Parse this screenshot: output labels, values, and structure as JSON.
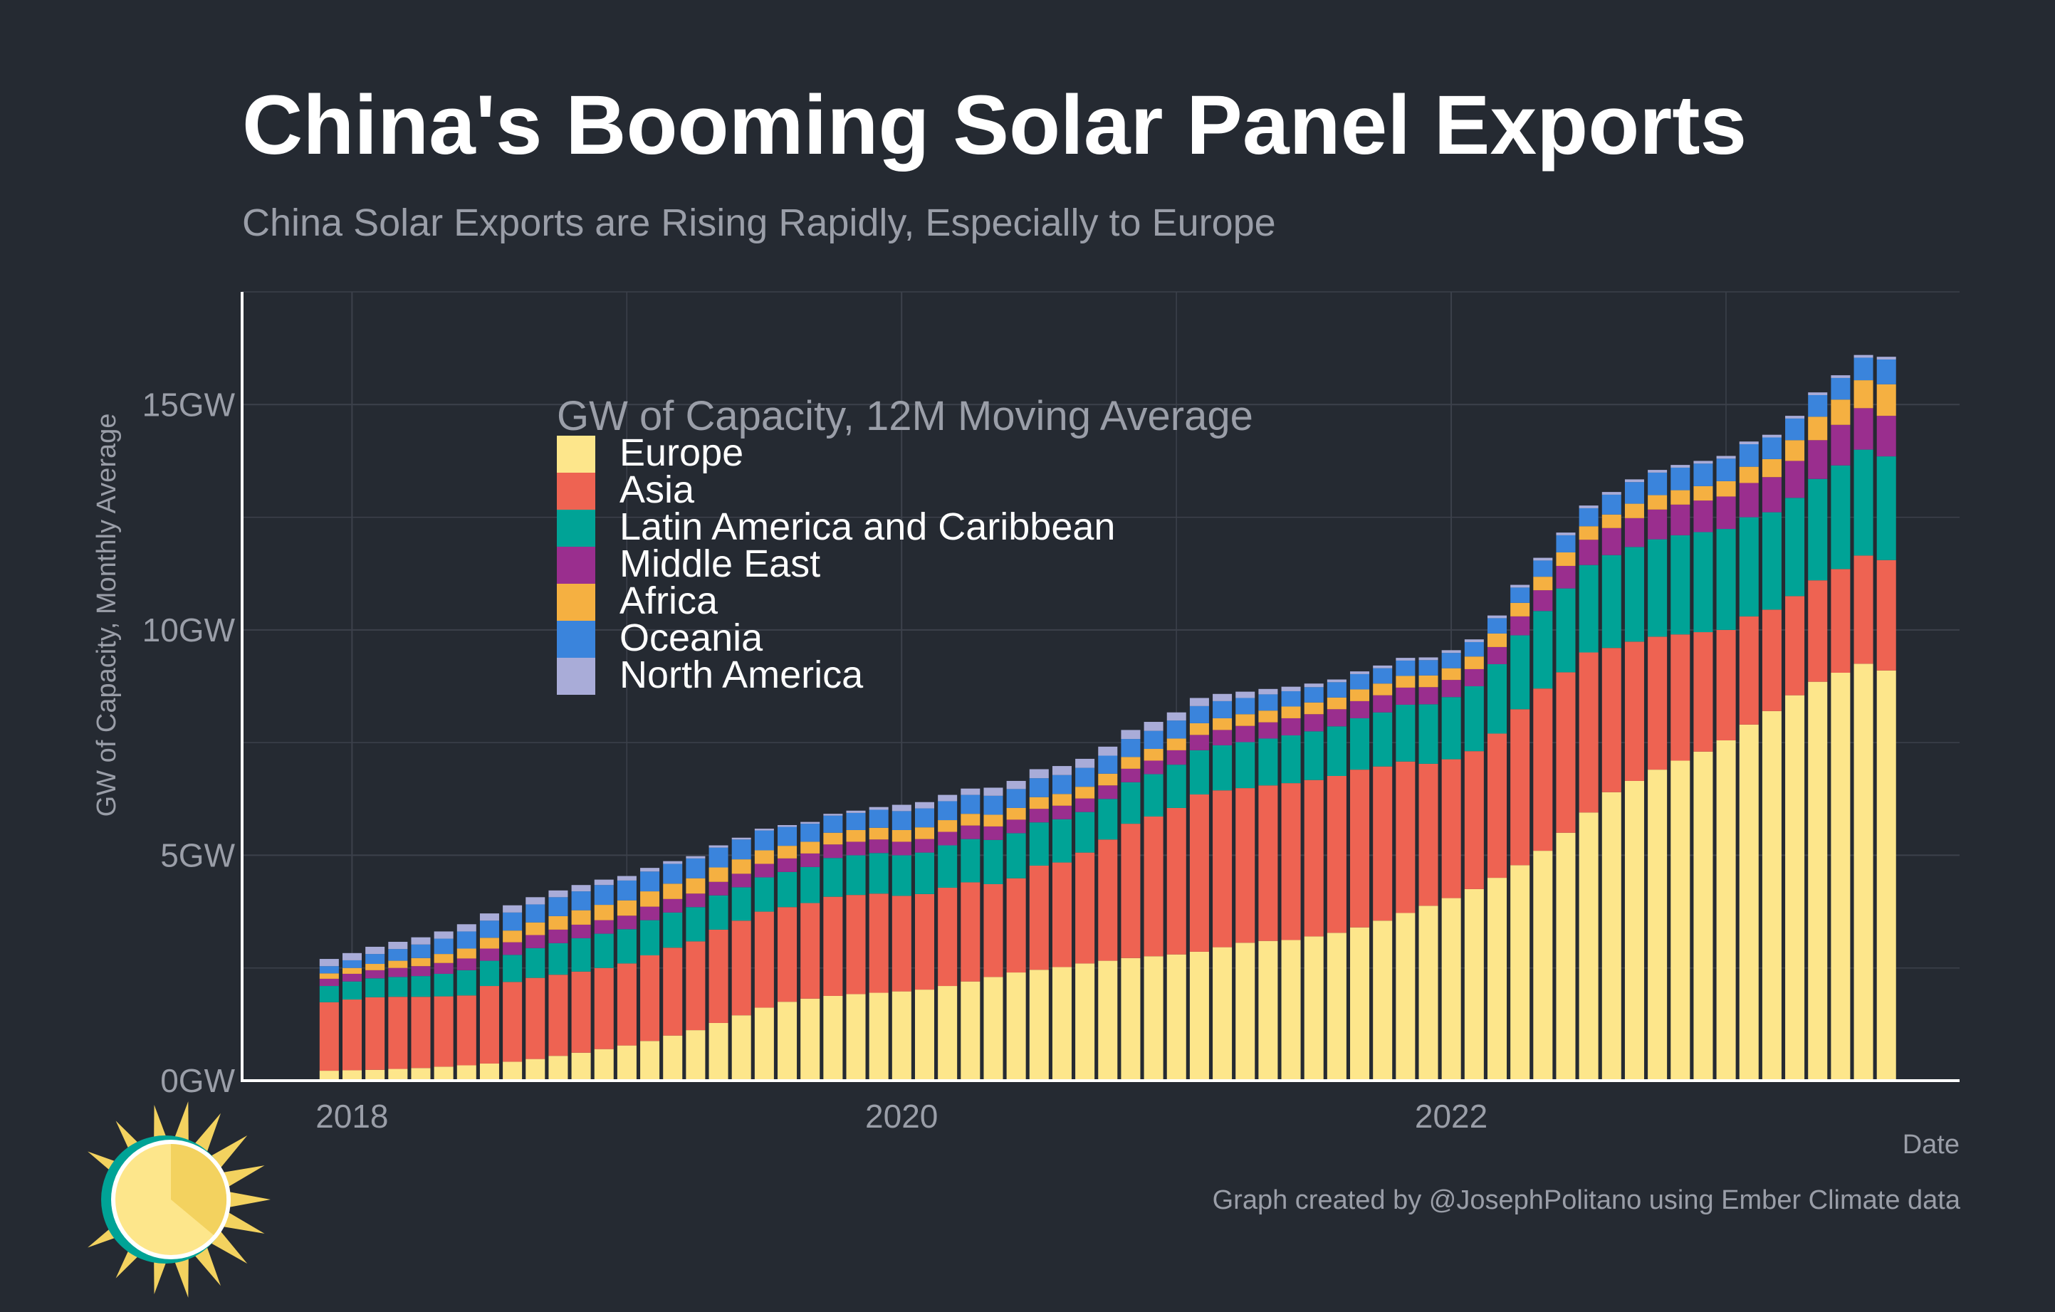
{
  "title": "China's Booming Solar Panel Exports",
  "subtitle": "China Solar Exports are Rising Rapidly, Especially to Europe",
  "caption": "Graph created by @JosephPolitano using Ember Climate data",
  "logo_icon": "sun-logo-icon",
  "colors": {
    "background": "#252a32",
    "grid": "#3c414b",
    "axis": "#ffffff",
    "muted_text": "#9a9ea8",
    "Europe": "#fde68b",
    "Asia": "#ee6352",
    "Latin America and Caribbean": "#00a396",
    "Middle East": "#9a2e8e",
    "Africa": "#f5b041",
    "Oceania": "#3a84dc",
    "North America": "#a9acd8"
  },
  "chart_data": {
    "type": "bar",
    "stacked": true,
    "title": "China's Booming Solar Panel Exports",
    "subtitle": "China Solar Exports are Rising Rapidly, Especially to Europe",
    "xlabel": "Date",
    "ylabel": "GW of Capacity, Monthly Average",
    "legend_title": "GW of Capacity, 12M Moving Average",
    "legend_position": "top-left",
    "y_ticks": [
      0,
      5,
      10,
      15
    ],
    "y_tick_labels": [
      "0GW",
      "5GW",
      "10GW",
      "15GW"
    ],
    "ylim": [
      0,
      17.5
    ],
    "x_ticks": [
      2018,
      2020,
      2022
    ],
    "x_tick_labels": [
      "2018",
      "2020",
      "2022"
    ],
    "xlim": [
      2017.6,
      2023.85
    ],
    "grid": true,
    "x_start": 2017.917,
    "x_step_months": 1,
    "series_order": [
      "Europe",
      "Asia",
      "Latin America and Caribbean",
      "Middle East",
      "Africa",
      "Oceania",
      "North America"
    ],
    "series": [
      {
        "name": "Europe",
        "values": [
          0.22,
          0.23,
          0.24,
          0.26,
          0.28,
          0.31,
          0.34,
          0.38,
          0.42,
          0.48,
          0.55,
          0.62,
          0.7,
          0.78,
          0.88,
          1.0,
          1.12,
          1.28,
          1.45,
          1.62,
          1.75,
          1.82,
          1.88,
          1.92,
          1.95,
          1.98,
          2.02,
          2.1,
          2.2,
          2.3,
          2.4,
          2.46,
          2.52,
          2.6,
          2.66,
          2.72,
          2.76,
          2.8,
          2.86,
          2.96,
          3.06,
          3.1,
          3.12,
          3.2,
          3.28,
          3.4,
          3.55,
          3.72,
          3.88,
          4.05,
          4.25,
          4.5,
          4.78,
          5.1,
          5.5,
          5.95,
          6.4,
          6.65,
          6.9,
          7.1,
          7.3,
          7.55,
          7.9,
          8.2,
          8.55,
          8.85,
          9.05,
          9.25,
          9.1
        ]
      },
      {
        "name": "Asia",
        "values": [
          1.52,
          1.57,
          1.61,
          1.6,
          1.58,
          1.56,
          1.55,
          1.72,
          1.77,
          1.8,
          1.8,
          1.8,
          1.8,
          1.82,
          1.9,
          1.95,
          1.97,
          2.07,
          2.1,
          2.13,
          2.1,
          2.12,
          2.2,
          2.2,
          2.2,
          2.12,
          2.12,
          2.18,
          2.2,
          2.06,
          2.09,
          2.31,
          2.32,
          2.46,
          2.69,
          2.98,
          3.1,
          3.25,
          3.49,
          3.48,
          3.43,
          3.45,
          3.48,
          3.47,
          3.48,
          3.5,
          3.42,
          3.36,
          3.15,
          3.08,
          3.06,
          3.2,
          3.46,
          3.6,
          3.56,
          3.55,
          3.2,
          3.09,
          2.95,
          2.8,
          2.65,
          2.45,
          2.4,
          2.25,
          2.2,
          2.25,
          2.3,
          2.4,
          2.45
        ]
      },
      {
        "name": "Latin America and Caribbean",
        "values": [
          0.36,
          0.4,
          0.42,
          0.44,
          0.46,
          0.5,
          0.56,
          0.56,
          0.6,
          0.66,
          0.7,
          0.74,
          0.76,
          0.76,
          0.78,
          0.78,
          0.76,
          0.76,
          0.74,
          0.76,
          0.78,
          0.8,
          0.86,
          0.88,
          0.9,
          0.9,
          0.92,
          0.94,
          0.96,
          0.98,
          1.0,
          0.96,
          0.96,
          0.9,
          0.9,
          0.92,
          0.94,
          0.96,
          0.98,
          1.0,
          1.02,
          1.04,
          1.06,
          1.08,
          1.1,
          1.14,
          1.2,
          1.26,
          1.32,
          1.38,
          1.44,
          1.54,
          1.64,
          1.72,
          1.86,
          1.94,
          2.06,
          2.1,
          2.16,
          2.2,
          2.22,
          2.24,
          2.2,
          2.16,
          2.18,
          2.25,
          2.3,
          2.35,
          2.3
        ]
      },
      {
        "name": "Middle East",
        "values": [
          0.16,
          0.17,
          0.18,
          0.2,
          0.22,
          0.24,
          0.26,
          0.27,
          0.28,
          0.29,
          0.3,
          0.3,
          0.3,
          0.3,
          0.3,
          0.3,
          0.3,
          0.3,
          0.3,
          0.3,
          0.3,
          0.3,
          0.3,
          0.3,
          0.3,
          0.3,
          0.3,
          0.3,
          0.3,
          0.3,
          0.3,
          0.3,
          0.3,
          0.3,
          0.3,
          0.3,
          0.3,
          0.32,
          0.34,
          0.34,
          0.36,
          0.36,
          0.38,
          0.38,
          0.38,
          0.38,
          0.38,
          0.38,
          0.38,
          0.38,
          0.38,
          0.38,
          0.42,
          0.46,
          0.5,
          0.56,
          0.6,
          0.64,
          0.66,
          0.68,
          0.7,
          0.72,
          0.76,
          0.78,
          0.82,
          0.86,
          0.9,
          0.92,
          0.9
        ]
      },
      {
        "name": "Africa",
        "values": [
          0.12,
          0.13,
          0.14,
          0.16,
          0.18,
          0.2,
          0.22,
          0.24,
          0.26,
          0.28,
          0.3,
          0.32,
          0.34,
          0.34,
          0.34,
          0.34,
          0.34,
          0.32,
          0.32,
          0.3,
          0.28,
          0.26,
          0.26,
          0.26,
          0.26,
          0.26,
          0.26,
          0.26,
          0.26,
          0.26,
          0.26,
          0.26,
          0.26,
          0.26,
          0.26,
          0.26,
          0.26,
          0.26,
          0.26,
          0.26,
          0.26,
          0.26,
          0.26,
          0.26,
          0.26,
          0.26,
          0.26,
          0.26,
          0.26,
          0.26,
          0.28,
          0.3,
          0.3,
          0.3,
          0.3,
          0.3,
          0.3,
          0.32,
          0.32,
          0.32,
          0.32,
          0.34,
          0.36,
          0.4,
          0.46,
          0.52,
          0.56,
          0.62,
          0.7
        ]
      },
      {
        "name": "Oceania",
        "values": [
          0.16,
          0.17,
          0.22,
          0.26,
          0.3,
          0.34,
          0.38,
          0.38,
          0.4,
          0.4,
          0.42,
          0.42,
          0.44,
          0.44,
          0.44,
          0.44,
          0.44,
          0.44,
          0.44,
          0.44,
          0.42,
          0.4,
          0.38,
          0.38,
          0.4,
          0.42,
          0.42,
          0.42,
          0.42,
          0.42,
          0.42,
          0.42,
          0.42,
          0.42,
          0.4,
          0.4,
          0.4,
          0.4,
          0.38,
          0.38,
          0.36,
          0.36,
          0.34,
          0.34,
          0.34,
          0.34,
          0.34,
          0.34,
          0.34,
          0.34,
          0.32,
          0.34,
          0.34,
          0.36,
          0.38,
          0.4,
          0.44,
          0.48,
          0.5,
          0.5,
          0.5,
          0.5,
          0.5,
          0.48,
          0.48,
          0.48,
          0.48,
          0.5,
          0.55
        ]
      },
      {
        "name": "North America",
        "values": [
          0.16,
          0.16,
          0.16,
          0.16,
          0.16,
          0.16,
          0.16,
          0.16,
          0.16,
          0.16,
          0.15,
          0.14,
          0.12,
          0.1,
          0.08,
          0.06,
          0.05,
          0.05,
          0.04,
          0.04,
          0.04,
          0.04,
          0.04,
          0.05,
          0.06,
          0.14,
          0.14,
          0.14,
          0.14,
          0.18,
          0.18,
          0.2,
          0.2,
          0.2,
          0.2,
          0.2,
          0.2,
          0.18,
          0.18,
          0.16,
          0.14,
          0.12,
          0.1,
          0.08,
          0.06,
          0.06,
          0.06,
          0.06,
          0.06,
          0.06,
          0.06,
          0.06,
          0.06,
          0.06,
          0.06,
          0.06,
          0.06,
          0.06,
          0.06,
          0.06,
          0.06,
          0.06,
          0.06,
          0.06,
          0.06,
          0.06,
          0.06,
          0.06,
          0.06
        ]
      }
    ]
  }
}
